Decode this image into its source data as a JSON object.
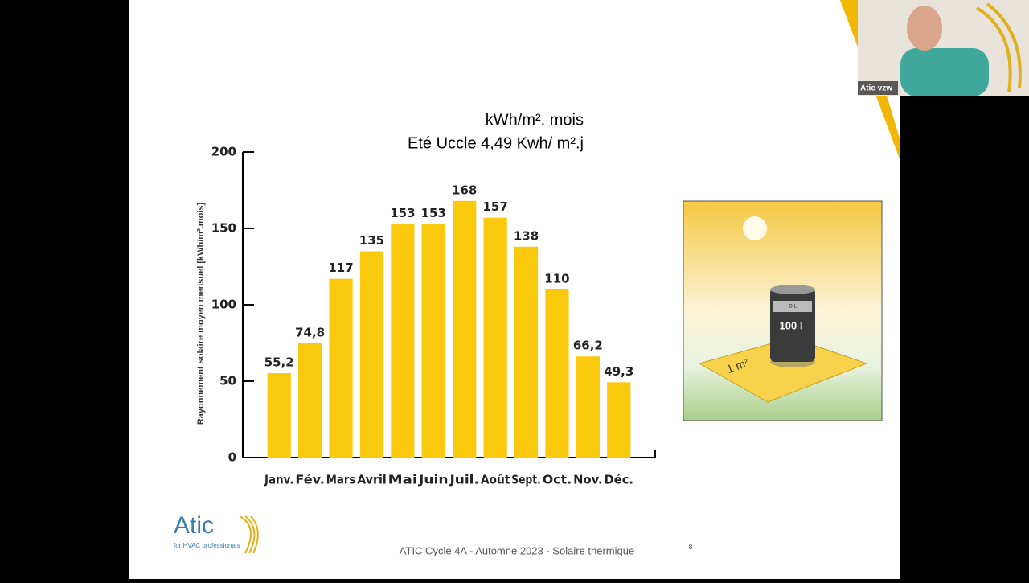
{
  "slide": {
    "title_line1": "kWh/m². mois",
    "title_line2": "Eté  Uccle 4,49 Kwh/ m².j",
    "footer": "ATIC Cycle 4A - Automne 2023 - Solaire thermique",
    "page_number": "8",
    "logo": "Atic",
    "logo_tagline": "for HVAC professionals",
    "image_labels": {
      "barrel": "100 l",
      "oil": "OIL",
      "plate": "1 m²"
    }
  },
  "video": {
    "name": "Atic vzw"
  },
  "chart_data": {
    "type": "bar",
    "ylabel": "Rayonnement solaire moyen mensuel [kWh/m².mois]",
    "categories": [
      "Janv.",
      "Fév.",
      "Mars",
      "Avril",
      "Mai",
      "Juin",
      "Juil.",
      "Août",
      "Sept.",
      "Oct.",
      "Nov.",
      "Déc."
    ],
    "values": [
      55.2,
      74.8,
      117,
      135,
      153,
      153,
      168,
      157,
      138,
      110,
      66.2,
      49.3
    ],
    "value_labels": [
      "55,2",
      "74,8",
      "117",
      "135",
      "153",
      "153",
      "168",
      "157",
      "138",
      "110",
      "66,2",
      "49,3"
    ],
    "color": "#fac80c",
    "ylim": [
      0,
      200
    ],
    "yticks": [
      0,
      50,
      100,
      150,
      200
    ]
  }
}
